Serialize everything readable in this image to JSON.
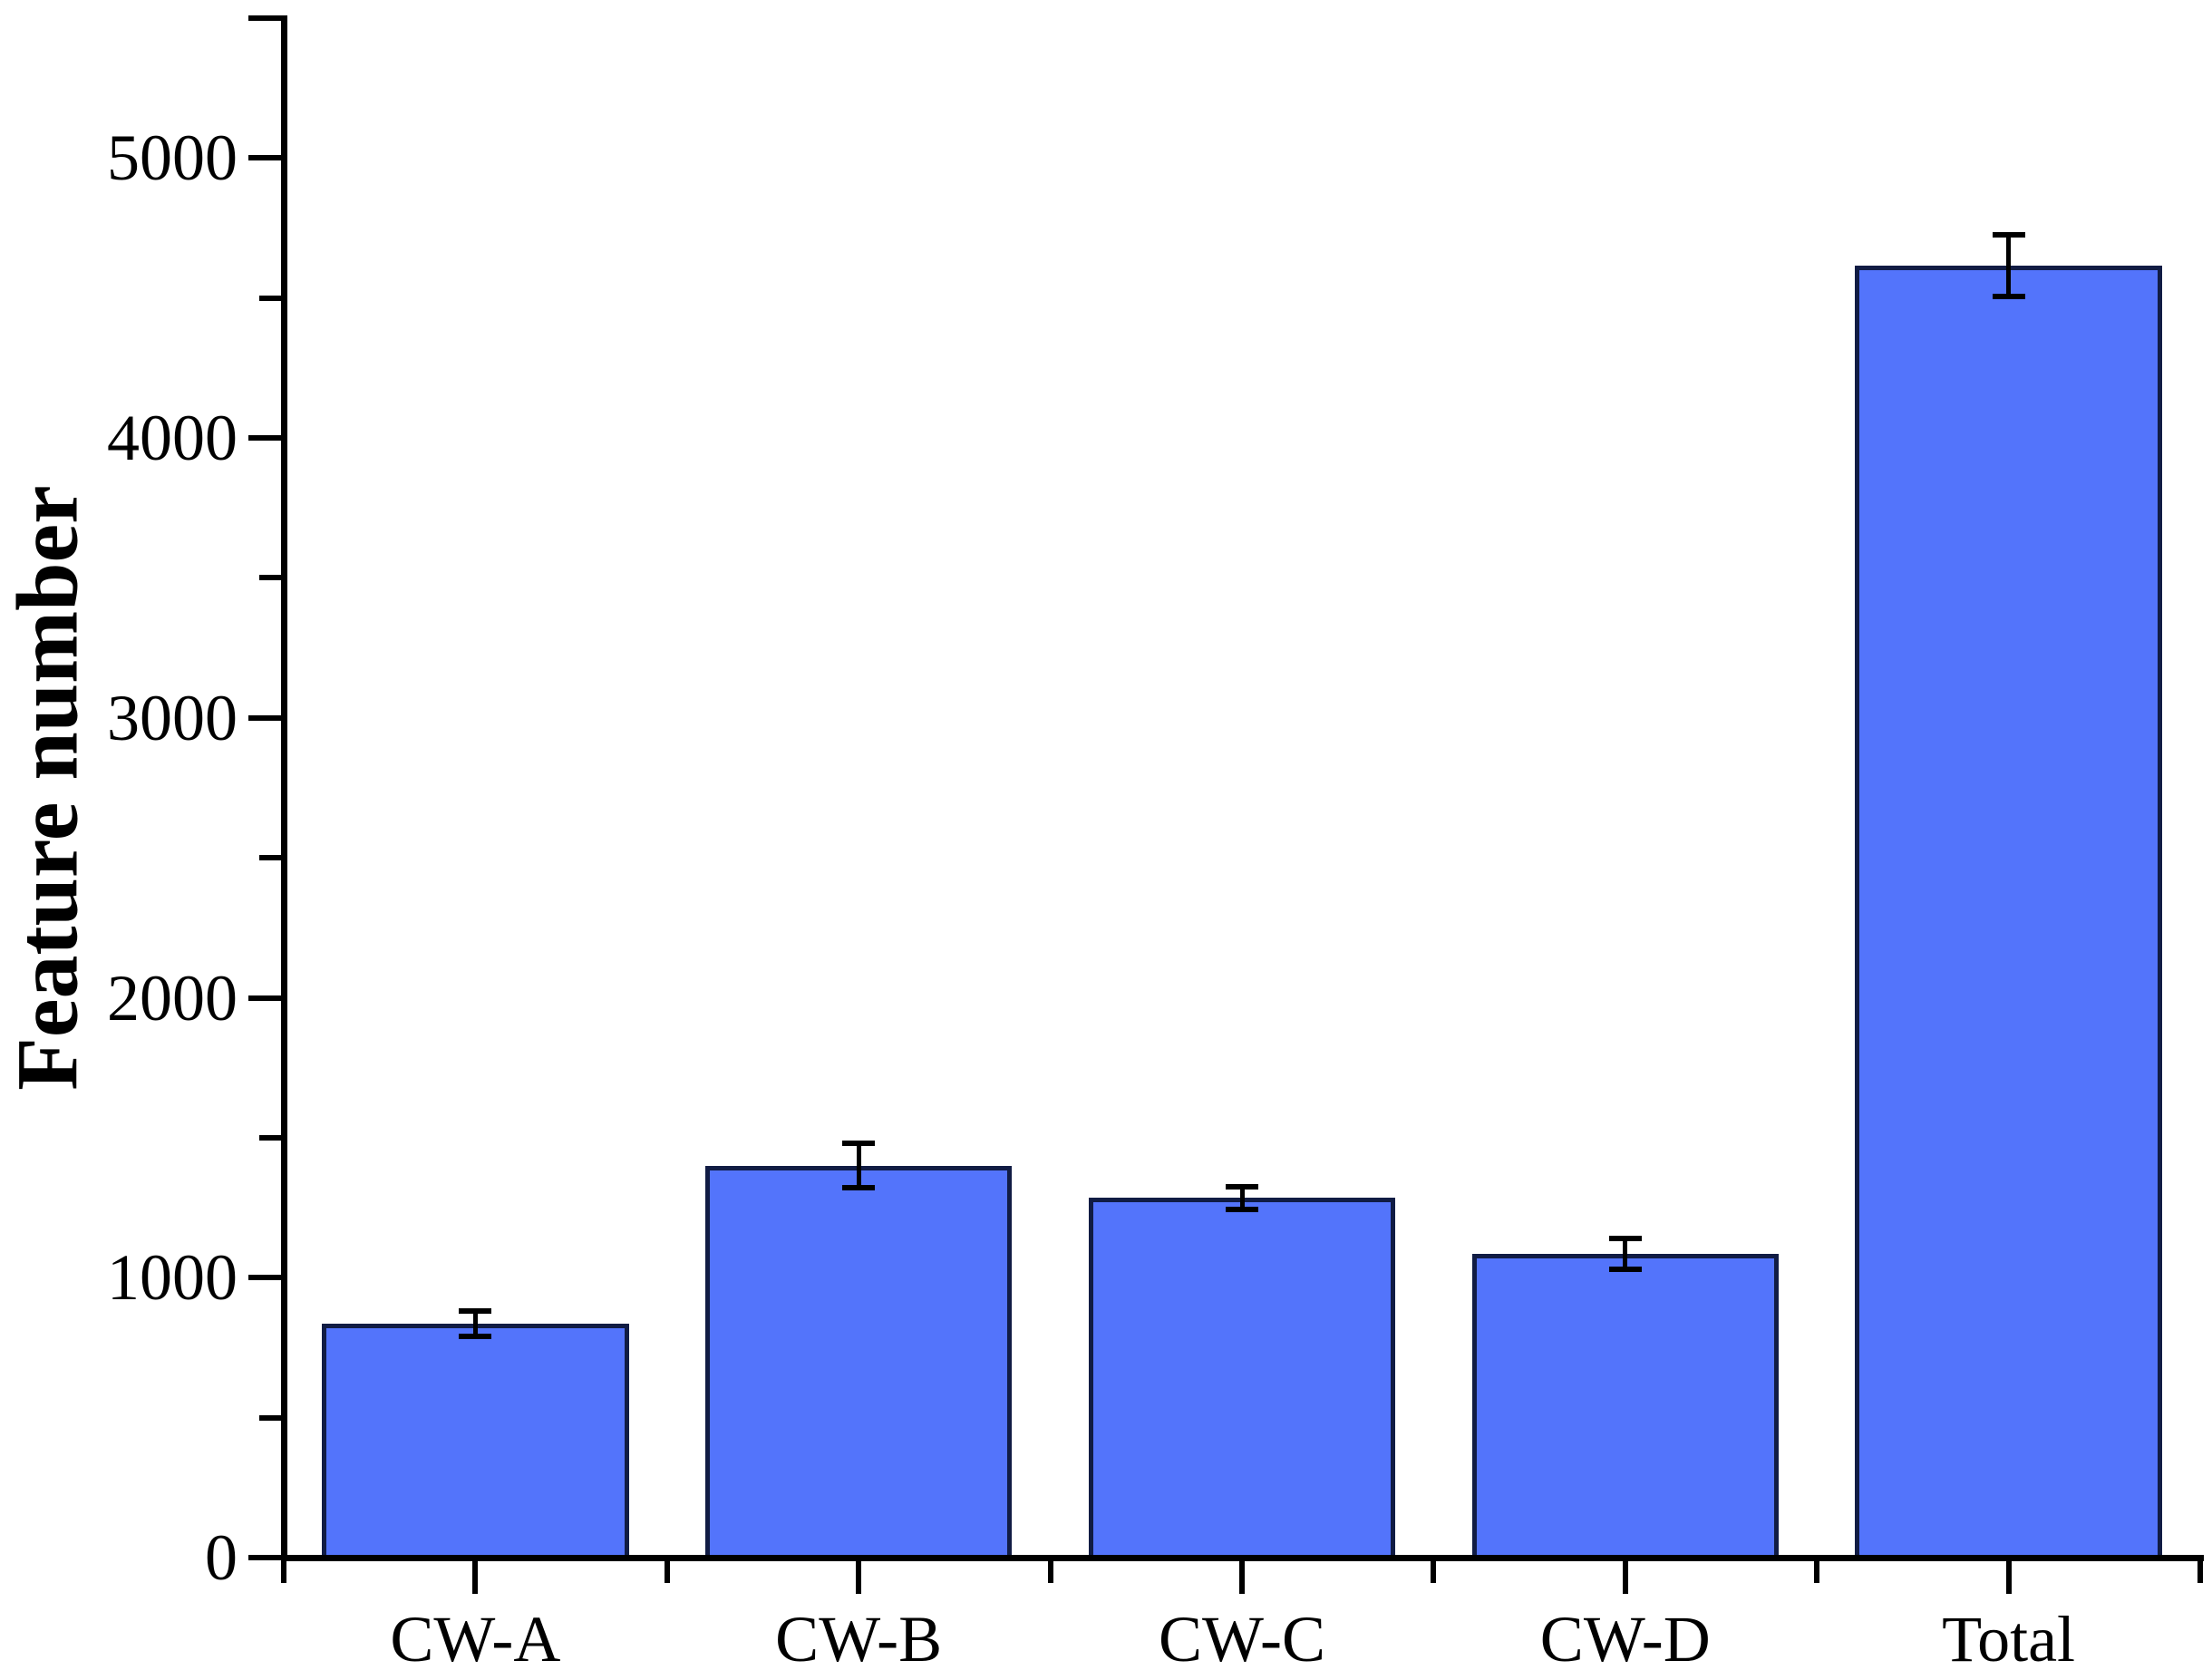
{
  "chart_data": {
    "type": "bar",
    "title": "",
    "ylabel": "Feature number",
    "xlabel": "",
    "categories": [
      "CW-A",
      "CW-B",
      "CW-C",
      "CW-D",
      "Total"
    ],
    "values": [
      835,
      1400,
      1285,
      1085,
      4615
    ],
    "errors": [
      45,
      80,
      40,
      55,
      110
    ],
    "ylim": [
      0,
      5500
    ],
    "y_major_ticks": [
      0,
      1000,
      2000,
      3000,
      4000,
      5000
    ],
    "y_major_tick_labels": [
      "0",
      "1000",
      "2000",
      "3000",
      "4000",
      "5000"
    ],
    "y_minor_ticks": [
      500,
      1500,
      2500,
      3500,
      4500,
      5500
    ],
    "grid": false,
    "legend": "none",
    "bar_fill_color": "#5374FB",
    "bar_outline_color": "#111C44",
    "error_bar_color": "#000000",
    "axis_color": "#000000",
    "text_color": "#000000"
  }
}
